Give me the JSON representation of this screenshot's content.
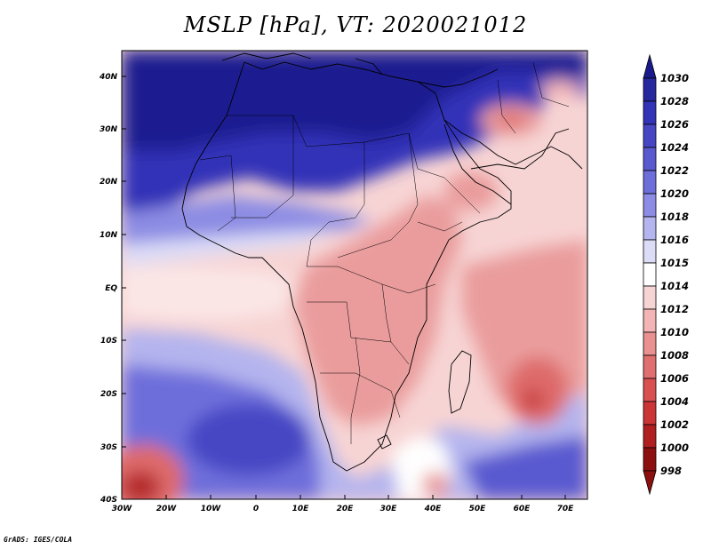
{
  "title": "MSLP [hPa], VT: 2020021012",
  "credit": "GrADS: IGES/COLA",
  "map": {
    "lat_ticks": [
      "40N",
      "30N",
      "20N",
      "10N",
      "EQ",
      "10S",
      "20S",
      "30S",
      "40S"
    ],
    "lon_ticks": [
      "30W",
      "20W",
      "10W",
      "0",
      "10E",
      "20E",
      "30E",
      "40E",
      "50E",
      "60E",
      "70E"
    ]
  },
  "colorbar": {
    "labels": [
      "1030",
      "1028",
      "1026",
      "1024",
      "1022",
      "1020",
      "1018",
      "1016",
      "1015",
      "1014",
      "1012",
      "1010",
      "1008",
      "1006",
      "1004",
      "1002",
      "1000",
      "998"
    ],
    "colors": [
      "#1a1a8c",
      "#27279e",
      "#3333b8",
      "#4646c4",
      "#5a5ad0",
      "#6e6edb",
      "#8c8ce4",
      "#b4b4ee",
      "#dcdcf7",
      "#ffffff",
      "#f7d4d4",
      "#f2b4b4",
      "#e99090",
      "#e07070",
      "#d85050",
      "#cc3535",
      "#b02020",
      "#8c1010"
    ]
  },
  "map_colors": {
    "ocean_high": "#3b3bbd",
    "blue_mid": "#6e6edb",
    "blue_light": "#b4b4ee",
    "white": "#ffffff",
    "pink_light": "#f7d4d4",
    "pink_mid": "#ea9c9c",
    "red_mid": "#de6b6b",
    "red_dark": "#b52a2a"
  }
}
